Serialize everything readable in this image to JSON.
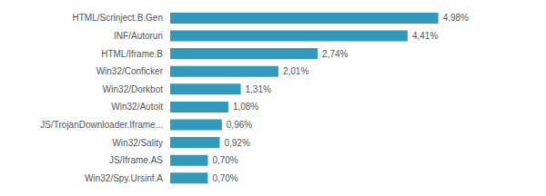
{
  "chart_data": {
    "type": "bar",
    "orientation": "horizontal",
    "categories": [
      "Win32/Spy.Ursinf.A",
      "JS/Iframe.AS",
      "Win32/Sality",
      "JS/TrojanDownloader.Iframe...",
      "Win32/Autoit",
      "Win32/Dorkbot",
      "Win32/Conficker",
      "HTML/Iframe.B",
      "INF/Autorun",
      "HTML/Scrinject.B.Gen"
    ],
    "values": [
      0.7,
      0.7,
      0.92,
      0.96,
      1.08,
      1.31,
      2.01,
      2.74,
      4.41,
      4.98
    ],
    "value_labels": [
      "0,70%",
      "0,70%",
      "0,92%",
      "0,96%",
      "1,08%",
      "1,31%",
      "2,01%",
      "2,74%",
      "4,41%",
      "4,98%"
    ],
    "data_labels": true,
    "color": "#3399bb",
    "xlim": [
      0,
      6.0
    ],
    "tick_labels": "y"
  }
}
